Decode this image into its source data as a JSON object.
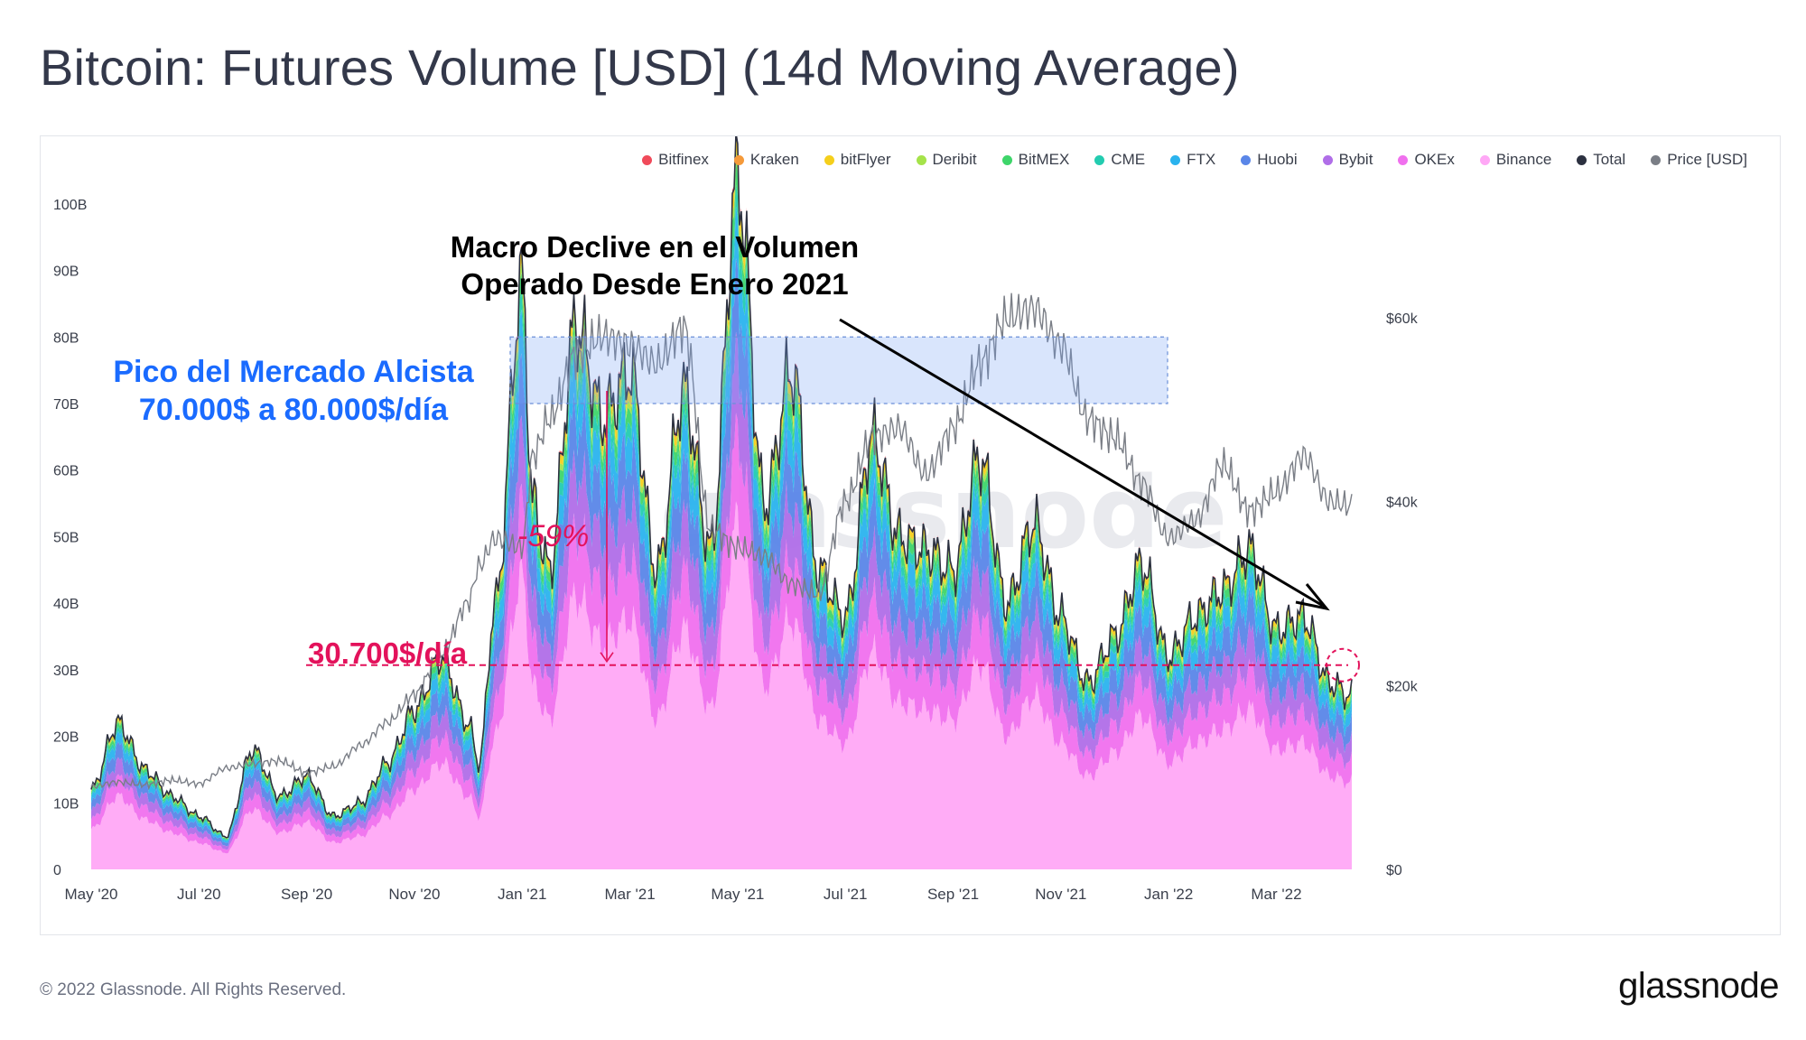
{
  "title": "Bitcoin: Futures Volume [USD] (14d Moving Average)",
  "footer": "© 2022 Glassnode. All Rights Reserved.",
  "brand": "glassnode",
  "watermark": "glassnode",
  "legend": [
    {
      "name": "Bitfinex",
      "color": "#f04a5a"
    },
    {
      "name": "Kraken",
      "color": "#f59a3a"
    },
    {
      "name": "bitFlyer",
      "color": "#f5cf1c"
    },
    {
      "name": "Deribit",
      "color": "#a5e34a"
    },
    {
      "name": "BitMEX",
      "color": "#3ed56a"
    },
    {
      "name": "CME",
      "color": "#23ccb0"
    },
    {
      "name": "FTX",
      "color": "#2ab3ee"
    },
    {
      "name": "Huobi",
      "color": "#5a86e8"
    },
    {
      "name": "Bybit",
      "color": "#b06ee8"
    },
    {
      "name": "OKEx",
      "color": "#f070ee"
    },
    {
      "name": "Binance",
      "color": "#ffa8f6"
    },
    {
      "name": "Total",
      "color": "#2c3140"
    },
    {
      "name": "Price [USD]",
      "color": "#7a7e86"
    }
  ],
  "annotations": {
    "macro_line1": "Macro Declive en el Volumen",
    "macro_line2": "Operado Desde Enero 2021",
    "peak_line1": "Pico del Mercado Alcista",
    "peak_line2": "70.000$ a 80.000$/día",
    "drop_pct": "-59%",
    "current_level": "30.700$/día"
  },
  "chart_data": {
    "type": "area",
    "title": "Bitcoin: Futures Volume [USD] (14d Moving Average)",
    "x_ticks": [
      "May '20",
      "Jul '20",
      "Sep '20",
      "Nov '20",
      "Jan '21",
      "Mar '21",
      "May '21",
      "Jul '21",
      "Sep '21",
      "Nov '21",
      "Jan '22",
      "Mar '22"
    ],
    "y_left_ticks": [
      "0",
      "10B",
      "20B",
      "30B",
      "40B",
      "50B",
      "60B",
      "70B",
      "80B",
      "90B",
      "100B"
    ],
    "y_left_range": [
      0,
      105
    ],
    "y_right_ticks": [
      "$0",
      "$20k",
      "$40k",
      "$60k"
    ],
    "y_right_range": [
      0,
      76000
    ],
    "months": [
      0,
      0.5,
      1,
      1.5,
      2,
      2.5,
      3,
      3.5,
      4,
      4.5,
      5,
      5.5,
      6,
      6.5,
      7,
      7.2,
      7.5,
      8,
      8.2,
      8.5,
      9,
      9.5,
      10,
      10.5,
      11,
      11.5,
      12,
      12.5,
      13,
      13.5,
      14,
      14.5,
      15,
      15.5,
      16,
      16.5,
      17,
      17.5,
      18,
      18.5,
      19,
      19.5,
      20,
      20.5,
      21,
      21.5,
      22,
      22.5,
      23,
      23.4
    ],
    "total_billions": [
      12,
      22,
      15,
      11,
      8,
      5,
      18,
      11,
      14,
      8,
      10,
      16,
      24,
      32,
      22,
      16,
      40,
      88,
      55,
      45,
      82,
      68,
      75,
      45,
      72,
      48,
      104,
      55,
      75,
      45,
      38,
      65,
      50,
      48,
      45,
      62,
      40,
      52,
      38,
      28,
      35,
      46,
      32,
      38,
      42,
      48,
      36,
      38,
      28,
      26
    ],
    "series_share": [
      {
        "name": "Binance",
        "share": 0.5
      },
      {
        "name": "OKEx",
        "share": 0.12
      },
      {
        "name": "Bybit",
        "share": 0.11
      },
      {
        "name": "Huobi",
        "share": 0.1
      },
      {
        "name": "FTX",
        "share": 0.07
      },
      {
        "name": "CME",
        "share": 0.03
      },
      {
        "name": "BitMEX",
        "share": 0.03
      },
      {
        "name": "Deribit",
        "share": 0.015
      },
      {
        "name": "bitFlyer",
        "share": 0.02
      },
      {
        "name": "Kraken",
        "share": 0.005
      },
      {
        "name": "Bitfinex",
        "share": 0.005
      }
    ],
    "price_usd": [
      9000,
      9500,
      9200,
      9700,
      9300,
      11000,
      11500,
      11800,
      10500,
      11200,
      13500,
      16000,
      19000,
      23500,
      29000,
      33000,
      36000,
      35000,
      45000,
      49000,
      56000,
      58000,
      57000,
      55000,
      59000,
      37000,
      35000,
      34000,
      31000,
      30000,
      40000,
      47000,
      48000,
      43000,
      48000,
      55000,
      60000,
      61000,
      57000,
      49000,
      47000,
      42000,
      36000,
      38000,
      44000,
      39000,
      41000,
      45000,
      40000,
      39500
    ],
    "annotation_levels": {
      "peak_band_billions": [
        70,
        80
      ],
      "current_level_billions": 30.7,
      "drop_percent": -59
    }
  }
}
